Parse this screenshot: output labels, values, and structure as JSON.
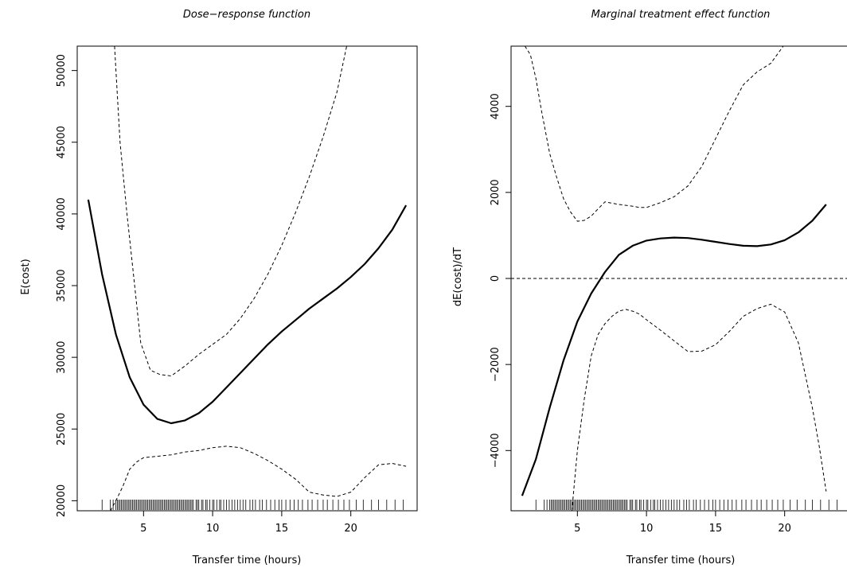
{
  "chart_data": [
    {
      "type": "line",
      "title": "Dose−response function",
      "xlabel": "Transfer time (hours)",
      "ylabel": "E(cost)",
      "xlim": [
        0.2,
        24.8
      ],
      "ylim": [
        19300,
        51700
      ],
      "xticks": [
        5,
        10,
        15,
        20
      ],
      "yticks": [
        20000,
        25000,
        30000,
        35000,
        40000,
        45000,
        50000
      ],
      "series": [
        {
          "style": "solid",
          "x": [
            1,
            2,
            3,
            4,
            5,
            6,
            7,
            8,
            9,
            10,
            11,
            12,
            13,
            14,
            15,
            16,
            17,
            18,
            19,
            20,
            21,
            22,
            23,
            24
          ],
          "y": [
            41000,
            35800,
            31600,
            28600,
            26700,
            25700,
            25400,
            25600,
            26100,
            26900,
            27900,
            28900,
            29900,
            30900,
            31800,
            32600,
            33400,
            34100,
            34800,
            35600,
            36500,
            37600,
            38900,
            40600
          ]
        },
        {
          "style": "dashed",
          "x": [
            2.9,
            3.3,
            3.8,
            4.3,
            4.8,
            5.5,
            6.2,
            7.0,
            8.0,
            9.0,
            10.0,
            11.0,
            12.0,
            13.0,
            14.0,
            15.0,
            16.0,
            17.0,
            18.0,
            19.0,
            19.7
          ],
          "y": [
            51700,
            45000,
            40000,
            35500,
            31000,
            29100,
            28800,
            28700,
            29400,
            30200,
            30900,
            31600,
            32700,
            34100,
            35800,
            37800,
            40100,
            42600,
            45400,
            48500,
            51700
          ]
        },
        {
          "style": "dashed",
          "x": [
            2.6,
            3.0,
            3.5,
            4.0,
            4.5,
            5.0,
            6.0,
            7.0,
            8.0,
            9.0,
            10.0,
            11.0,
            12.0,
            13.0,
            14.0,
            15.0,
            16.0,
            17.0,
            18.0,
            19.0,
            20.0,
            21.0,
            22.0,
            23.0,
            24.0
          ],
          "y": [
            19300,
            20000,
            21000,
            22200,
            22700,
            23000,
            23100,
            23200,
            23400,
            23500,
            23700,
            23800,
            23700,
            23300,
            22800,
            22200,
            21500,
            20600,
            20400,
            20300,
            20600,
            21600,
            22500,
            22600,
            22400
          ]
        }
      ]
    },
    {
      "type": "line",
      "title": "Marginal treatment effect function",
      "xlabel": "Transfer time (hours)",
      "ylabel": "dE(cost)/dT",
      "xlim": [
        0.2,
        24.8
      ],
      "ylim": [
        -5400,
        5400
      ],
      "xticks": [
        5,
        10,
        15,
        20
      ],
      "yticks": [
        -4000,
        -2000,
        0,
        2000,
        4000
      ],
      "series": [
        {
          "style": "solid",
          "x": [
            1,
            2,
            3,
            4,
            5,
            6,
            7,
            8,
            9,
            10,
            11,
            12,
            13,
            14,
            15,
            16,
            17,
            18,
            19,
            20,
            21,
            22,
            23
          ],
          "y": [
            -5050,
            -4200,
            -3000,
            -1900,
            -1000,
            -350,
            150,
            550,
            760,
            880,
            930,
            950,
            940,
            900,
            850,
            800,
            760,
            750,
            790,
            890,
            1070,
            1340,
            1720
          ]
        },
        {
          "style": "dashed",
          "x": [
            1.2,
            1.6,
            2.0,
            2.4,
            3.0,
            3.5,
            4.0,
            4.5,
            5.0,
            5.5,
            6.0,
            6.5,
            7.0,
            7.5,
            8.0,
            8.5,
            9.0,
            9.5,
            10.0,
            11.0,
            12.0,
            13.0,
            14.0,
            15.0,
            16.0,
            17.0,
            18.0,
            19.0,
            19.9
          ],
          "y": [
            5400,
            5200,
            4650,
            3900,
            2900,
            2350,
            1850,
            1550,
            1330,
            1350,
            1450,
            1620,
            1780,
            1750,
            1720,
            1700,
            1680,
            1650,
            1650,
            1760,
            1900,
            2150,
            2600,
            3250,
            3900,
            4500,
            4800,
            5000,
            5400
          ]
        },
        {
          "style": "dashed",
          "x": [
            4.6,
            5.0,
            5.5,
            6.0,
            6.5,
            7.0,
            7.5,
            8.0,
            8.5,
            9.0,
            9.5,
            10.0,
            11.0,
            12.0,
            13.0,
            14.0,
            15.0,
            16.0,
            17.0,
            18.0,
            19.0,
            20.0,
            21.0,
            22.0,
            22.5,
            23.0
          ],
          "y": [
            -5400,
            -4000,
            -2800,
            -1800,
            -1300,
            -1050,
            -880,
            -760,
            -720,
            -760,
            -830,
            -960,
            -1200,
            -1450,
            -1700,
            -1690,
            -1540,
            -1230,
            -880,
            -700,
            -600,
            -780,
            -1500,
            -3000,
            -3900,
            -4950
          ]
        },
        {
          "style": "dashed-reference",
          "x": [
            0.2,
            24.8
          ],
          "y": [
            0,
            0
          ]
        }
      ]
    }
  ],
  "rug": [
    2.0,
    2.6,
    2.8,
    3.0,
    3.1,
    3.2,
    3.3,
    3.4,
    3.5,
    3.6,
    3.7,
    3.8,
    3.9,
    4.0,
    4.1,
    4.2,
    4.3,
    4.4,
    4.5,
    4.6,
    4.7,
    4.8,
    4.9,
    5.0,
    5.1,
    5.2,
    5.3,
    5.4,
    5.5,
    5.6,
    5.7,
    5.8,
    5.9,
    6.0,
    6.1,
    6.2,
    6.3,
    6.4,
    6.5,
    6.6,
    6.7,
    6.8,
    6.9,
    7.0,
    7.1,
    7.2,
    7.3,
    7.4,
    7.5,
    7.6,
    7.7,
    7.8,
    7.9,
    8.0,
    8.1,
    8.2,
    8.3,
    8.4,
    8.5,
    8.6,
    8.8,
    8.9,
    9.0,
    9.2,
    9.3,
    9.5,
    9.6,
    9.8,
    10.0,
    10.1,
    10.3,
    10.5,
    10.6,
    10.8,
    11.0,
    11.2,
    11.4,
    11.6,
    11.8,
    12.0,
    12.2,
    12.4,
    12.7,
    12.9,
    13.1,
    13.4,
    13.6,
    13.9,
    14.2,
    14.5,
    14.8,
    15.0,
    15.3,
    15.6,
    15.9,
    16.2,
    16.5,
    16.9,
    17.2,
    17.6,
    18.0,
    18.3,
    18.7,
    19.1,
    19.5,
    19.9,
    20.4,
    20.9,
    21.5,
    22.0,
    22.6,
    23.2,
    23.8
  ]
}
